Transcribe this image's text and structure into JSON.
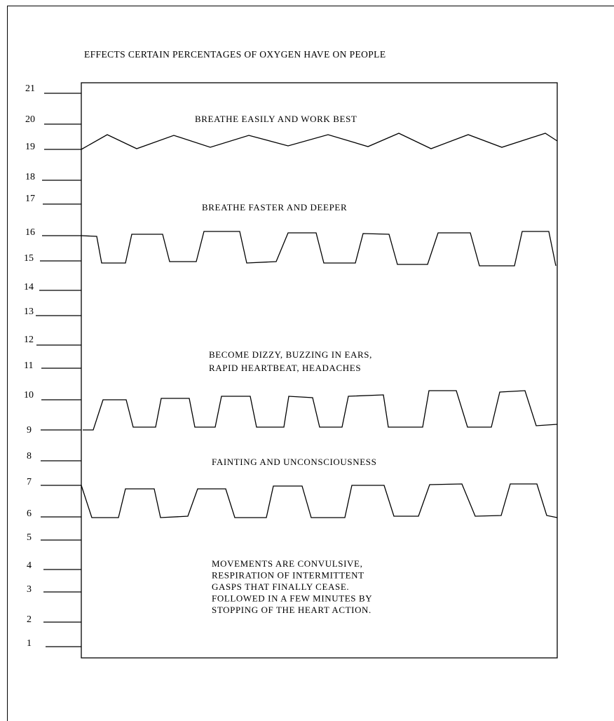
{
  "title": "EFFECTS CERTAIN PERCENTAGES OF OXYGEN HAVE ON PEOPLE",
  "scale": {
    "ticks": [
      "21",
      "20",
      "19",
      "18",
      "17",
      "16",
      "15",
      "14",
      "13",
      "12",
      "11",
      "10",
      "9",
      "8",
      "7",
      "6",
      "5",
      "4",
      "3",
      "2",
      "1"
    ]
  },
  "zones": [
    {
      "id": "breathe-easily",
      "lines": [
        "BREATHE EASILY AND WORK BEST"
      ]
    },
    {
      "id": "breathe-faster",
      "lines": [
        "BREATHE FASTER AND DEEPER"
      ]
    },
    {
      "id": "dizzy",
      "lines": [
        "BECOME DIZZY, BUZZING IN EARS,",
        "RAPID HEARTBEAT, HEADACHES"
      ]
    },
    {
      "id": "fainting",
      "lines": [
        "FAINTING AND UNCONSCIOUSNESS"
      ]
    },
    {
      "id": "convulsive",
      "lines": [
        "MOVEMENTS ARE CONVULSIVE,",
        "RESPIRATION OF INTERMITTENT",
        "GASPS THAT FINALLY CEASE.",
        "FOLLOWED IN A FEW MINUTES BY",
        "STOPPING OF THE HEART ACTION."
      ]
    }
  ]
}
